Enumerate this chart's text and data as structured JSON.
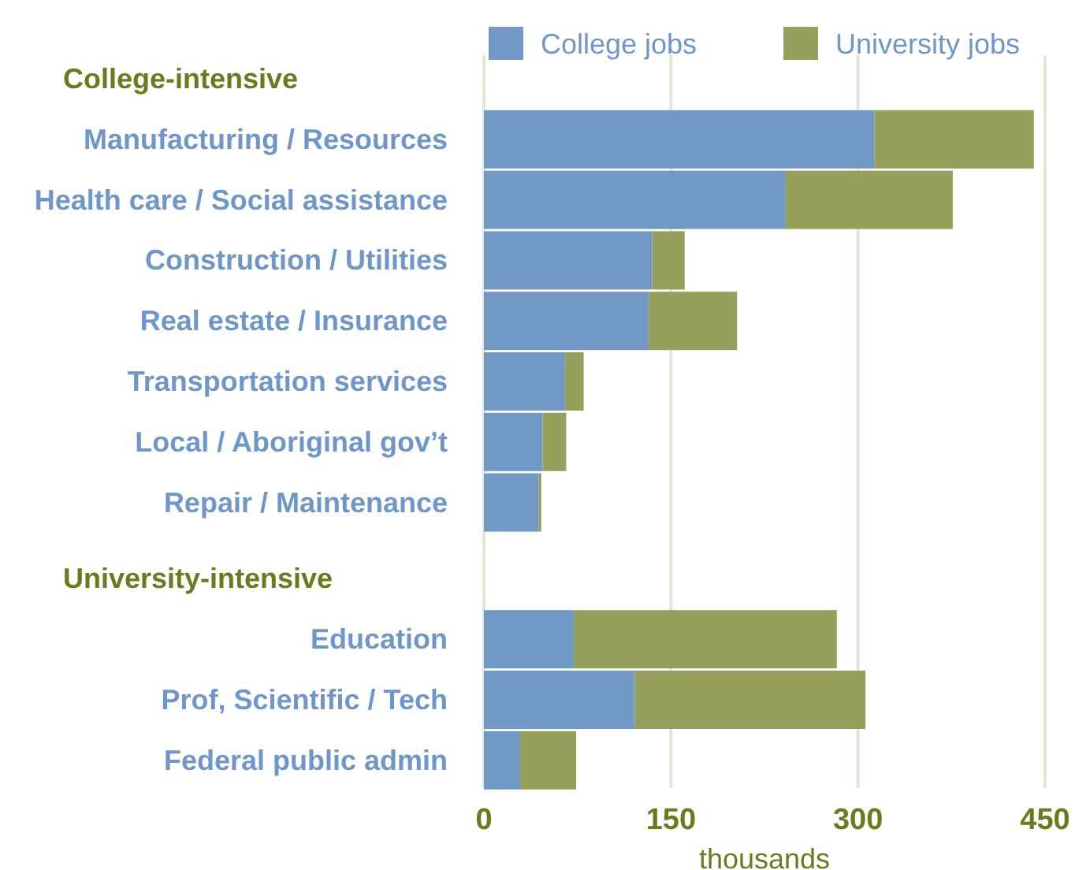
{
  "chart_data": {
    "type": "bar",
    "orientation": "horizontal",
    "stacked": true,
    "categories": [
      null,
      "Manufacturing / Resources",
      "Health care / Social assistance",
      "Construction / Utilities",
      "Real estate / Insurance",
      "Transportation services",
      "Local / Aboriginal gov’t",
      "Repair / Maintenance",
      null,
      "Education",
      "Prof, Scientific / Tech",
      "Federal public admin"
    ],
    "series": [
      {
        "name": "College jobs",
        "color": "#7299c6",
        "values": [
          null,
          313,
          242,
          135,
          132,
          65,
          47,
          44,
          null,
          72,
          121,
          29
        ]
      },
      {
        "name": "University jobs",
        "color": "#96a05c",
        "values": [
          null,
          128,
          134,
          26,
          71,
          15,
          19,
          2,
          null,
          211,
          185,
          45
        ]
      }
    ],
    "annotations": [
      "College-intensive",
      "University-intensive"
    ],
    "xlim": [
      0,
      450
    ],
    "xticks": [
      0,
      150,
      300,
      450
    ],
    "xlabel": "thousands",
    "grid": "x",
    "legend": "top right"
  }
}
